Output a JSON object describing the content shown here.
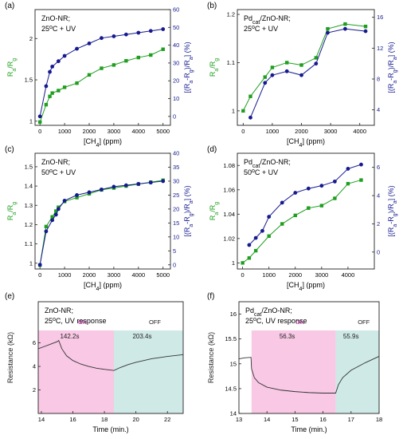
{
  "figure": {
    "panel_labels": [
      "(a)",
      "(b)",
      "(c)",
      "(d)",
      "(e)",
      "(f)"
    ],
    "colors": {
      "green": "#1f9e1f",
      "blue": "#161a8f",
      "on_fill": "#f8c8e4",
      "off_fill": "#cfe9e7",
      "on_text": "#e020c0",
      "trace": "#333333"
    }
  },
  "chart_data": [
    {
      "panel": "(a)",
      "type": "line",
      "annotations": [
        "ZnO-NR;",
        "25°C + UV"
      ],
      "xlabel": "[CH4] (ppm)",
      "ylabel_left": "Ra/Rg",
      "ylabel_right": "[(Ra-Rg)/Ra] (%)",
      "xlim": [
        -200,
        5300
      ],
      "ylim_left": [
        0.95,
        2.35
      ],
      "ylim_right": [
        -5,
        60
      ],
      "xticks": [
        0,
        1000,
        2000,
        3000,
        4000,
        5000
      ],
      "yticks_left": [
        1.0,
        1.5,
        2.0
      ],
      "yticks_right": [
        0,
        10,
        20,
        30,
        40,
        50,
        60
      ],
      "grid": false,
      "series": [
        {
          "axis": "left",
          "color": "green",
          "marker": "square",
          "x": [
            0,
            250,
            400,
            500,
            750,
            1000,
            1500,
            2000,
            2500,
            3000,
            3500,
            4000,
            4500,
            5000
          ],
          "values": [
            0.99,
            1.2,
            1.3,
            1.34,
            1.37,
            1.41,
            1.46,
            1.56,
            1.64,
            1.68,
            1.73,
            1.77,
            1.8,
            1.87
          ]
        },
        {
          "axis": "right",
          "color": "blue",
          "marker": "circle",
          "x": [
            0,
            250,
            400,
            500,
            750,
            1000,
            1500,
            2000,
            2500,
            3000,
            3500,
            4000,
            4500,
            5000
          ],
          "values": [
            0,
            17,
            25,
            28,
            31,
            34,
            38,
            41,
            44,
            45,
            46,
            47,
            48,
            49
          ]
        }
      ]
    },
    {
      "panel": "(b)",
      "type": "line",
      "annotations": [
        "Pdcat/ZnO-NR;",
        "25°C + UV"
      ],
      "xlabel": "[CH4] (ppm)",
      "ylabel_left": "Ra/Rg",
      "ylabel_right": "[(Ra-Rg)/Ra] (%)",
      "xlim": [
        -200,
        4500
      ],
      "ylim_left": [
        0.97,
        1.21
      ],
      "ylim_right": [
        2,
        17
      ],
      "xticks": [
        0,
        1000,
        2000,
        3000,
        4000
      ],
      "yticks_left": [
        1.0,
        1.1,
        1.2
      ],
      "yticks_right": [
        4,
        8,
        12,
        16
      ],
      "grid": false,
      "series": [
        {
          "axis": "left",
          "color": "green",
          "marker": "square",
          "x": [
            0,
            250,
            750,
            1000,
            1500,
            2000,
            2500,
            2900,
            3500,
            4200
          ],
          "values": [
            1.0,
            1.03,
            1.07,
            1.09,
            1.1,
            1.095,
            1.11,
            1.17,
            1.18,
            1.175
          ]
        },
        {
          "axis": "right",
          "color": "blue",
          "marker": "circle",
          "x": [
            250,
            750,
            1000,
            1500,
            2000,
            2500,
            2900,
            3500,
            4200
          ],
          "values": [
            3,
            7.5,
            8.5,
            9,
            8.5,
            10,
            14,
            14.5,
            14.2
          ]
        }
      ]
    },
    {
      "panel": "(c)",
      "type": "line",
      "annotations": [
        "ZnO-NR;",
        "50°C + UV"
      ],
      "xlabel": "[CH4] (ppm)",
      "ylabel_left": "Ra/Rg",
      "ylabel_right": "[(Ra-Rg)/Ra] (%)",
      "xlim": [
        -200,
        5300
      ],
      "ylim_left": [
        0.97,
        1.57
      ],
      "ylim_right": [
        -1.5,
        40
      ],
      "xticks": [
        0,
        1000,
        2000,
        3000,
        4000,
        5000
      ],
      "yticks_left": [
        1.0,
        1.1,
        1.2,
        1.3,
        1.4,
        1.5
      ],
      "yticks_right": [
        0,
        5,
        10,
        15,
        20,
        25,
        30,
        35,
        40
      ],
      "grid": false,
      "series": [
        {
          "axis": "left",
          "color": "green",
          "marker": "square",
          "x": [
            0,
            250,
            500,
            650,
            750,
            1000,
            1500,
            2000,
            2500,
            3000,
            3500,
            4000,
            4500,
            5000
          ],
          "values": [
            0.99,
            1.19,
            1.24,
            1.27,
            1.29,
            1.32,
            1.34,
            1.36,
            1.38,
            1.39,
            1.4,
            1.41,
            1.42,
            1.43
          ]
        },
        {
          "axis": "right",
          "color": "blue",
          "marker": "circle",
          "x": [
            0,
            250,
            500,
            650,
            750,
            1000,
            1500,
            2000,
            2500,
            3000,
            3500,
            4000,
            4500,
            5000
          ],
          "values": [
            0,
            12,
            16,
            18,
            20,
            23,
            25,
            26,
            27,
            28,
            28.5,
            29,
            29.5,
            30
          ]
        }
      ]
    },
    {
      "panel": "(d)",
      "type": "line",
      "annotations": [
        "Pdcat/ZnO-NR;",
        "50°C + UV"
      ],
      "xlabel": "[CH4] (ppm)",
      "ylabel_left": "Ra/Rg",
      "ylabel_right": "[(Ra-Rg)/Ra] (%)",
      "xlim": [
        -200,
        5000
      ],
      "ylim_left": [
        0.995,
        1.09
      ],
      "ylim_right": [
        -1.2,
        7
      ],
      "xticks": [
        0,
        1000,
        2000,
        3000,
        4000
      ],
      "yticks_left": [
        1.0,
        1.02,
        1.04,
        1.06,
        1.08
      ],
      "yticks_right": [
        0,
        2,
        4,
        6
      ],
      "grid": false,
      "series": [
        {
          "axis": "left",
          "color": "green",
          "marker": "square",
          "x": [
            0,
            250,
            500,
            1000,
            1500,
            2000,
            2500,
            3000,
            3500,
            4000,
            4500
          ],
          "values": [
            1.0,
            1.004,
            1.01,
            1.022,
            1.032,
            1.039,
            1.045,
            1.047,
            1.053,
            1.065,
            1.068
          ]
        },
        {
          "axis": "right",
          "color": "blue",
          "marker": "circle",
          "x": [
            250,
            500,
            750,
            1000,
            1500,
            2000,
            2500,
            3000,
            3500,
            4000,
            4500
          ],
          "values": [
            0.5,
            1.0,
            1.5,
            2.5,
            3.5,
            4.2,
            4.5,
            4.7,
            5.0,
            5.9,
            6.2
          ]
        }
      ]
    },
    {
      "panel": "(e)",
      "type": "line",
      "annotations": [
        "ZnO-NR;",
        "25°C, UV response"
      ],
      "xlabel": "Time (min.)",
      "ylabel_left": "Resistance (kΩ)",
      "xlim": [
        13.8,
        23
      ],
      "ylim_left": [
        0,
        9.5
      ],
      "xticks": [
        14,
        16,
        18,
        20,
        22
      ],
      "yticks_left": [
        2,
        4,
        6
      ],
      "grid": false,
      "regions": [
        {
          "label": "ON",
          "duration": "142.2s",
          "x0": 13.8,
          "x1": 18.6,
          "color": "on_fill"
        },
        {
          "label": "OFF",
          "duration": "203.4s",
          "x0": 18.6,
          "x1": 23,
          "color": "off_fill"
        }
      ],
      "series": [
        {
          "color": "trace",
          "x": [
            13.8,
            14.2,
            14.6,
            15.0,
            15.1,
            15.3,
            15.6,
            16.0,
            16.5,
            17.0,
            17.5,
            18.0,
            18.6,
            19.0,
            19.5,
            20.0,
            21.0,
            22.0,
            23.0
          ],
          "values": [
            5.5,
            5.7,
            5.9,
            6.1,
            6.2,
            5.5,
            4.9,
            4.5,
            4.2,
            4.0,
            3.85,
            3.75,
            3.65,
            3.9,
            4.15,
            4.35,
            4.65,
            4.85,
            5.0
          ]
        }
      ]
    },
    {
      "panel": "(f)",
      "type": "line",
      "annotations": [
        "Pdcat/ZnO-NR;",
        "25°C, UV response"
      ],
      "xlabel": "Time (min.)",
      "ylabel_left": "Resistance (kΩ)",
      "xlim": [
        13,
        18
      ],
      "ylim_left": [
        14.0,
        16.25
      ],
      "xticks": [
        13,
        14,
        15,
        16,
        17,
        18
      ],
      "yticks_left": [
        14.0,
        14.5,
        15.0,
        15.5,
        16.0
      ],
      "grid": false,
      "regions": [
        {
          "label": "ON",
          "duration": "56.3s",
          "x0": 13.45,
          "x1": 16.45,
          "color": "on_fill"
        },
        {
          "label": "OFF",
          "duration": "55.9s",
          "x0": 16.45,
          "x1": 18,
          "color": "off_fill"
        }
      ],
      "series": [
        {
          "color": "trace",
          "x": [
            13.0,
            13.2,
            13.43,
            13.45,
            13.55,
            13.7,
            14.0,
            14.5,
            15.0,
            15.5,
            16.0,
            16.45,
            16.55,
            16.7,
            17.0,
            17.5,
            18.0
          ],
          "values": [
            15.1,
            15.12,
            15.13,
            14.9,
            14.72,
            14.62,
            14.53,
            14.47,
            14.44,
            14.42,
            14.41,
            14.41,
            14.58,
            14.72,
            14.87,
            15.02,
            15.15
          ]
        }
      ]
    }
  ]
}
